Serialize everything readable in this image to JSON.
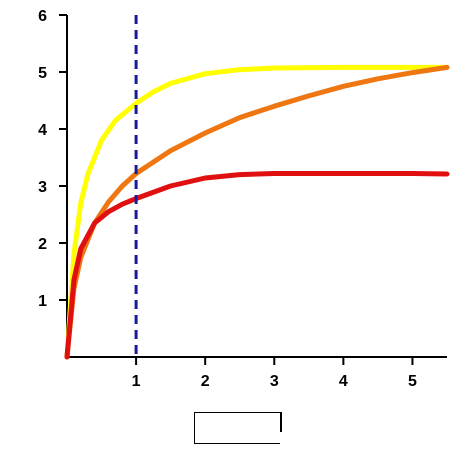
{
  "chart_data": {
    "type": "line",
    "xlim": [
      0,
      5.5
    ],
    "ylim": [
      0,
      6
    ],
    "x_ticks": [
      "1",
      "2",
      "3",
      "4",
      "5"
    ],
    "y_ticks": [
      "1",
      "2",
      "3",
      "4",
      "5",
      "6"
    ],
    "grid": false,
    "legend": "empty box below the plot",
    "vline": {
      "x": 1.0,
      "color": "#1a1a9c",
      "style": "dashed"
    },
    "series": [
      {
        "color": "#ffff00",
        "points": [
          [
            0,
            0
          ],
          [
            0.1,
            1.8
          ],
          [
            0.2,
            2.7
          ],
          [
            0.3,
            3.2
          ],
          [
            0.5,
            3.8
          ],
          [
            0.7,
            4.15
          ],
          [
            1.0,
            4.45
          ],
          [
            1.25,
            4.65
          ],
          [
            1.5,
            4.8
          ],
          [
            2.0,
            4.97
          ],
          [
            2.5,
            5.04
          ],
          [
            3.0,
            5.07
          ],
          [
            4.0,
            5.08
          ],
          [
            5.0,
            5.08
          ],
          [
            5.5,
            5.08
          ]
        ]
      },
      {
        "color": "#ee7711",
        "points": [
          [
            0,
            0
          ],
          [
            0.1,
            1.2
          ],
          [
            0.2,
            1.75
          ],
          [
            0.4,
            2.35
          ],
          [
            0.6,
            2.72
          ],
          [
            0.8,
            3.0
          ],
          [
            1.0,
            3.22
          ],
          [
            1.5,
            3.62
          ],
          [
            2.0,
            3.93
          ],
          [
            2.5,
            4.2
          ],
          [
            3.0,
            4.4
          ],
          [
            3.5,
            4.58
          ],
          [
            4.0,
            4.75
          ],
          [
            4.5,
            4.88
          ],
          [
            5.0,
            4.99
          ],
          [
            5.5,
            5.08
          ]
        ]
      },
      {
        "color": "#e01010",
        "points": [
          [
            0,
            0
          ],
          [
            0.1,
            1.35
          ],
          [
            0.2,
            1.9
          ],
          [
            0.4,
            2.35
          ],
          [
            0.6,
            2.55
          ],
          [
            0.8,
            2.68
          ],
          [
            1.0,
            2.78
          ],
          [
            1.5,
            3.0
          ],
          [
            2.0,
            3.14
          ],
          [
            2.5,
            3.2
          ],
          [
            3.0,
            3.22
          ],
          [
            4.0,
            3.22
          ],
          [
            5.0,
            3.22
          ],
          [
            5.5,
            3.21
          ]
        ]
      }
    ]
  }
}
